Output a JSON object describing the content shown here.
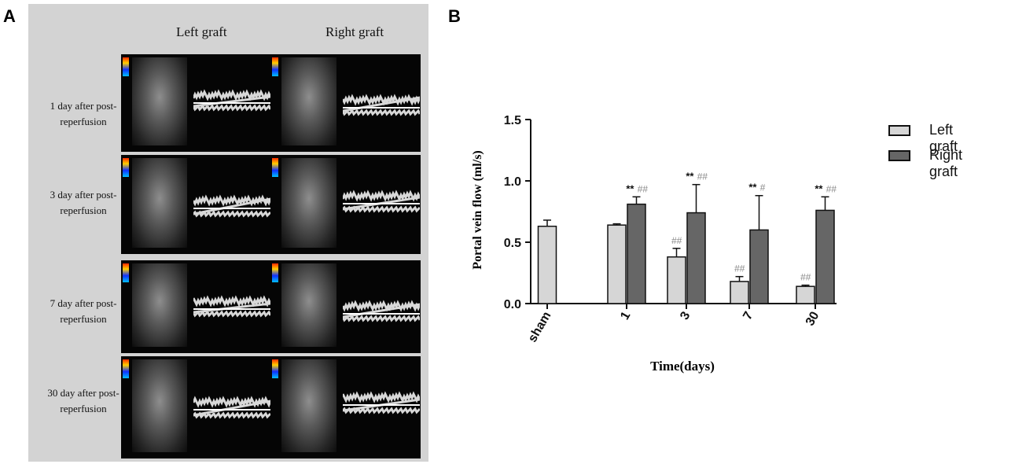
{
  "panel_labels": {
    "a": "A",
    "b": "B"
  },
  "panel_a": {
    "column_headers": [
      "Left graft",
      "Right graft"
    ],
    "rows": [
      {
        "line1": "1 day after post-",
        "line2": "reperfusion"
      },
      {
        "line1": "3 day after post-",
        "line2": "reperfusion"
      },
      {
        "line1": "7 day after post-",
        "line2": "reperfusion"
      },
      {
        "line1": "30 day after post-",
        "line2": "reperfusion"
      }
    ]
  },
  "chart_data": {
    "type": "bar",
    "xlabel": "Time(days)",
    "ylabel": "Portal vein flow (ml/s)",
    "ylim": [
      0,
      1.5
    ],
    "yticks": [
      "0.0",
      "0.5",
      "1.0",
      "1.5"
    ],
    "categories": [
      "sham",
      "1",
      "3",
      "7",
      "30"
    ],
    "series": [
      {
        "name": "Left graft",
        "color": "#d6d6d6",
        "values": [
          0.63,
          0.64,
          0.38,
          0.18,
          0.14
        ],
        "errors": [
          0.05,
          0.01,
          0.07,
          0.04,
          0.01
        ],
        "annotations": [
          "",
          "",
          "##",
          "##",
          "##"
        ]
      },
      {
        "name": "Right graft",
        "color": "#666666",
        "values": [
          null,
          0.81,
          0.74,
          0.6,
          0.76
        ],
        "errors": [
          null,
          0.06,
          0.23,
          0.28,
          0.11
        ],
        "annotations": [
          "",
          "** ##",
          "** ##",
          "** #",
          "** ##"
        ]
      }
    ],
    "legend_position": "right"
  }
}
